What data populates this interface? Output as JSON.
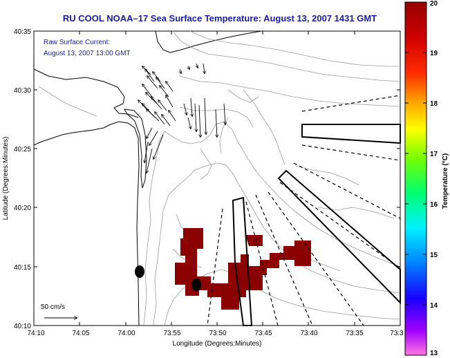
{
  "title": "RU COOL  NOAA–17  Sea Surface Temperature:  August 13, 2007 1431 GMT",
  "current_label_line1": "Raw Surface Current:",
  "current_label_line2": "August 13, 2007 13:00 GMT",
  "scale_label": "50 cm/s",
  "x_axis": {
    "label": "Longitude (Degrees:Minutes)",
    "ticks": [
      "74:10",
      "74:05",
      "74:00",
      "73:55",
      "73:50",
      "73:45",
      "73:40",
      "73:35",
      "73:3"
    ]
  },
  "y_axis": {
    "label": "Latitude (Degrees:Minutes)",
    "ticks": [
      "40:35",
      "40:30",
      "40:25",
      "40:20",
      "40:15",
      "40:10"
    ]
  },
  "colorbar": {
    "label": "Temperature (°C)",
    "ticks": [
      "20",
      "19",
      "18",
      "17",
      "16",
      "15",
      "14",
      "13"
    ],
    "min": 13,
    "max": 20,
    "colors": [
      "#ff66cc",
      "#9b00ff",
      "#0000ff",
      "#0099ff",
      "#00ffee",
      "#00ff66",
      "#66ff00",
      "#ffff00",
      "#ffaa00",
      "#ff3300",
      "#dd0000",
      "#990000"
    ]
  },
  "sst_patch_color": "#8b0000",
  "station_markers": 2
}
